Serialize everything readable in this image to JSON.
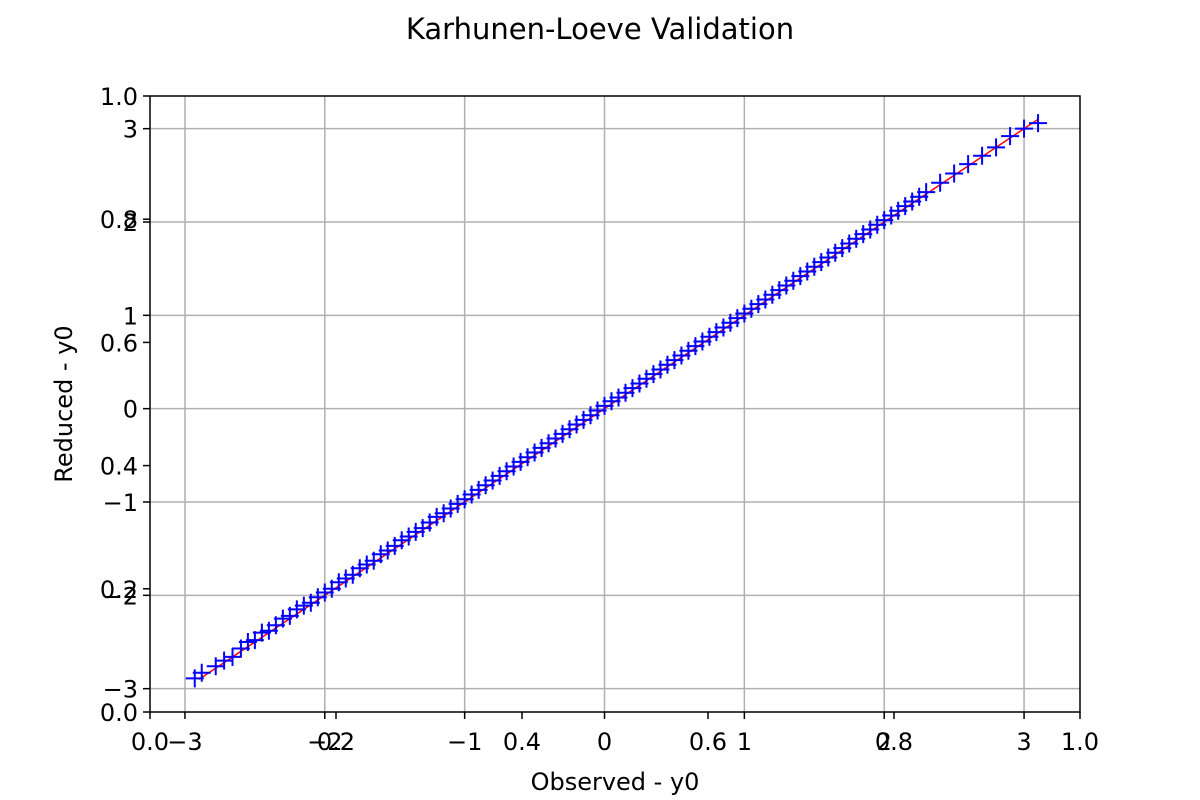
{
  "chart_data": {
    "type": "scatter",
    "title": "Karhunen-Loeve Validation",
    "xlabel": "Observed - y0",
    "ylabel": "Reduced - y0",
    "grid": true,
    "xlim": [
      -3.25,
      3.4
    ],
    "ylim": [
      -3.25,
      3.35
    ],
    "xticks": [
      {
        "value": -3,
        "label": "−3"
      },
      {
        "value": -2,
        "label": "−2"
      },
      {
        "value": -1,
        "label": "−1"
      },
      {
        "value": 0,
        "label": "0"
      },
      {
        "value": 1,
        "label": "1"
      },
      {
        "value": 2,
        "label": "2"
      },
      {
        "value": 3,
        "label": "3"
      }
    ],
    "yticks": [
      {
        "value": -3,
        "label": "−3"
      },
      {
        "value": -2,
        "label": "−2"
      },
      {
        "value": -1,
        "label": "−1"
      },
      {
        "value": 0,
        "label": "0"
      },
      {
        "value": 1,
        "label": "1"
      },
      {
        "value": 2,
        "label": "2"
      },
      {
        "value": 3,
        "label": "3"
      }
    ],
    "overlay_axes": {
      "xticks": [
        {
          "value": 0.0,
          "label": "0.0"
        },
        {
          "value": 0.2,
          "label": "0.2"
        },
        {
          "value": 0.4,
          "label": "0.4"
        },
        {
          "value": 0.6,
          "label": "0.6"
        },
        {
          "value": 0.8,
          "label": "0.8"
        },
        {
          "value": 1.0,
          "label": "1.0"
        }
      ],
      "yticks": [
        {
          "value": 0.0,
          "label": "0.0"
        },
        {
          "value": 0.2,
          "label": "0.2"
        },
        {
          "value": 0.4,
          "label": "0.4"
        },
        {
          "value": 0.6,
          "label": "0.6"
        },
        {
          "value": 0.8,
          "label": "0.8"
        },
        {
          "value": 1.0,
          "label": "1.0"
        }
      ]
    },
    "series": [
      {
        "marker": "+",
        "color": "#0000ff",
        "points": [
          [
            -2.93,
            -2.89
          ],
          [
            -2.88,
            -2.83
          ],
          [
            -2.78,
            -2.76
          ],
          [
            -2.72,
            -2.7
          ],
          [
            -2.66,
            -2.66
          ],
          [
            -2.6,
            -2.57
          ],
          [
            -2.55,
            -2.5
          ],
          [
            -2.5,
            -2.48
          ],
          [
            -2.45,
            -2.4
          ],
          [
            -2.4,
            -2.38
          ],
          [
            -2.35,
            -2.32
          ],
          [
            -2.3,
            -2.25
          ],
          [
            -2.25,
            -2.22
          ],
          [
            -2.2,
            -2.15
          ],
          [
            -2.15,
            -2.11
          ],
          [
            -2.1,
            -2.08
          ],
          [
            -2.05,
            -2.02
          ],
          [
            -2.0,
            -1.97
          ],
          [
            -1.95,
            -1.93
          ],
          [
            -1.9,
            -1.86
          ],
          [
            -1.85,
            -1.82
          ],
          [
            -1.8,
            -1.78
          ],
          [
            -1.75,
            -1.71
          ],
          [
            -1.7,
            -1.67
          ],
          [
            -1.65,
            -1.63
          ],
          [
            -1.6,
            -1.56
          ],
          [
            -1.55,
            -1.52
          ],
          [
            -1.5,
            -1.47
          ],
          [
            -1.45,
            -1.41
          ],
          [
            -1.4,
            -1.37
          ],
          [
            -1.35,
            -1.32
          ],
          [
            -1.3,
            -1.28
          ],
          [
            -1.25,
            -1.22
          ],
          [
            -1.2,
            -1.16
          ],
          [
            -1.15,
            -1.12
          ],
          [
            -1.1,
            -1.07
          ],
          [
            -1.05,
            -1.02
          ],
          [
            -1.0,
            -0.97
          ],
          [
            -0.95,
            -0.92
          ],
          [
            -0.9,
            -0.87
          ],
          [
            -0.85,
            -0.82
          ],
          [
            -0.8,
            -0.77
          ],
          [
            -0.75,
            -0.72
          ],
          [
            -0.7,
            -0.67
          ],
          [
            -0.65,
            -0.62
          ],
          [
            -0.6,
            -0.57
          ],
          [
            -0.55,
            -0.52
          ],
          [
            -0.5,
            -0.47
          ],
          [
            -0.45,
            -0.42
          ],
          [
            -0.4,
            -0.37
          ],
          [
            -0.35,
            -0.32
          ],
          [
            -0.3,
            -0.27
          ],
          [
            -0.25,
            -0.22
          ],
          [
            -0.2,
            -0.17
          ],
          [
            -0.15,
            -0.12
          ],
          [
            -0.1,
            -0.07
          ],
          [
            -0.05,
            -0.02
          ],
          [
            0.0,
            0.03
          ],
          [
            0.05,
            0.08
          ],
          [
            0.1,
            0.12
          ],
          [
            0.15,
            0.17
          ],
          [
            0.2,
            0.22
          ],
          [
            0.25,
            0.27
          ],
          [
            0.3,
            0.32
          ],
          [
            0.35,
            0.37
          ],
          [
            0.4,
            0.42
          ],
          [
            0.45,
            0.47
          ],
          [
            0.5,
            0.52
          ],
          [
            0.55,
            0.57
          ],
          [
            0.6,
            0.62
          ],
          [
            0.65,
            0.67
          ],
          [
            0.7,
            0.72
          ],
          [
            0.75,
            0.77
          ],
          [
            0.8,
            0.82
          ],
          [
            0.85,
            0.87
          ],
          [
            0.9,
            0.92
          ],
          [
            0.95,
            0.97
          ],
          [
            1.0,
            1.02
          ],
          [
            1.05,
            1.07
          ],
          [
            1.1,
            1.12
          ],
          [
            1.15,
            1.17
          ],
          [
            1.2,
            1.22
          ],
          [
            1.25,
            1.27
          ],
          [
            1.3,
            1.32
          ],
          [
            1.35,
            1.37
          ],
          [
            1.4,
            1.42
          ],
          [
            1.45,
            1.47
          ],
          [
            1.5,
            1.52
          ],
          [
            1.55,
            1.57
          ],
          [
            1.6,
            1.62
          ],
          [
            1.65,
            1.67
          ],
          [
            1.7,
            1.72
          ],
          [
            1.75,
            1.77
          ],
          [
            1.8,
            1.82
          ],
          [
            1.85,
            1.87
          ],
          [
            1.9,
            1.92
          ],
          [
            1.95,
            1.97
          ],
          [
            2.0,
            2.02
          ],
          [
            2.05,
            2.07
          ],
          [
            2.1,
            2.12
          ],
          [
            2.15,
            2.17
          ],
          [
            2.2,
            2.22
          ],
          [
            2.25,
            2.27
          ],
          [
            2.3,
            2.32
          ],
          [
            2.4,
            2.42
          ],
          [
            2.5,
            2.52
          ],
          [
            2.6,
            2.62
          ],
          [
            2.7,
            2.71
          ],
          [
            2.8,
            2.8
          ],
          [
            2.9,
            2.92
          ],
          [
            3.0,
            3.0
          ],
          [
            3.1,
            3.06
          ]
        ]
      }
    ],
    "reference_line": {
      "from": [
        -2.9,
        -2.9
      ],
      "to": [
        3.1,
        3.1
      ],
      "color": "#ff0000"
    }
  }
}
